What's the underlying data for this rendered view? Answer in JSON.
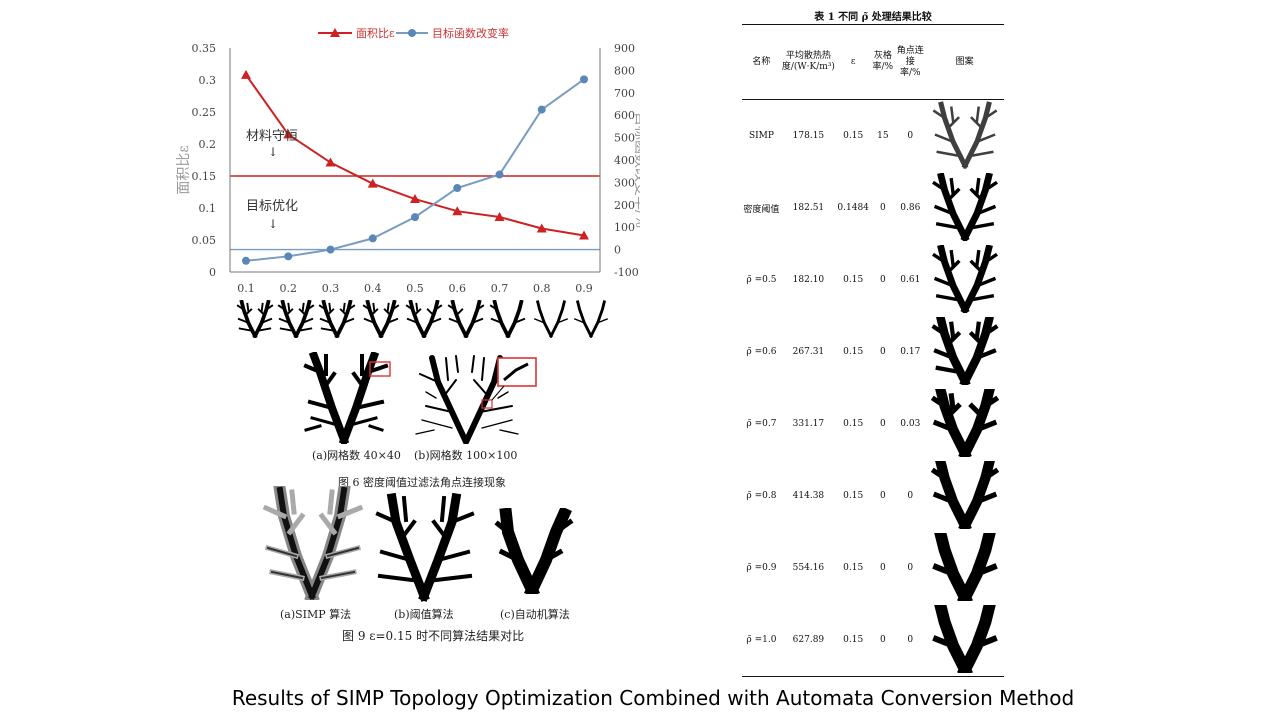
{
  "chart_data": {
    "type": "line",
    "x": [
      0.1,
      0.2,
      0.3,
      0.4,
      0.5,
      0.6,
      0.7,
      0.8,
      0.9
    ],
    "x_ticks": [
      "0.1",
      "0.2",
      "0.3",
      "0.4",
      "0.5",
      "0.6",
      "0.7",
      "0.8",
      "0.9"
    ],
    "y_left_ticks": [
      "0",
      "0.05",
      "0.1",
      "0.15",
      "0.2",
      "0.25",
      "0.3",
      "0.35"
    ],
    "y_right_ticks": [
      "-100",
      "0",
      "100",
      "200",
      "300",
      "400",
      "500",
      "600",
      "700",
      "800",
      "900"
    ],
    "ylim_left": [
      0,
      0.35
    ],
    "ylim_right": [
      -100,
      900
    ],
    "ylabel_left": "面积比ε",
    "ylabel_right": "目标函数改变率/%",
    "series": [
      {
        "name": "面积比ε",
        "axis": "left",
        "color": "#cc2222",
        "marker": "triangle",
        "values": [
          0.308,
          0.215,
          0.171,
          0.138,
          0.114,
          0.095,
          0.086,
          0.068,
          0.057
        ]
      },
      {
        "name": "目标函数改变率",
        "axis": "right",
        "color": "#7a9cc0",
        "marker": "circle",
        "values": [
          -50,
          -30,
          0,
          50,
          145,
          275,
          335,
          625,
          760
        ]
      }
    ],
    "reference_lines": [
      {
        "axis": "left",
        "value": 0.15,
        "color": "#cc2222"
      },
      {
        "axis": "right",
        "value": 0,
        "color": "#7a9cc0"
      }
    ],
    "annotations": [
      "材料守恒",
      "目标优化"
    ]
  },
  "captions": {
    "fig6_a": "(a)网格数 40×40",
    "fig6_b": "(b)网格数 100×100",
    "fig6": "图 6  密度阈值过滤法角点连接现象",
    "fig9_a": "(a)SIMP 算法",
    "fig9_b": "(b)阈值算法",
    "fig9_c": "(c)自动机算法",
    "fig9": "图 9  ε=0.15 时不同算法结果对比"
  },
  "table": {
    "title": "表 1  不同 ρ̃ 处理结果比较",
    "headers": [
      "名称",
      "平均散热热度/(W·K/m³)",
      "ε",
      "灰格率/%",
      "角点连接率/%",
      "图案"
    ],
    "rows": [
      {
        "name": "SIMP",
        "heat": "178.15",
        "eps": "0.15",
        "gray": "15",
        "corner": "0"
      },
      {
        "name": "密度阈值",
        "heat": "182.51",
        "eps": "0.1484",
        "gray": "0",
        "corner": "0.86"
      },
      {
        "name": "ρ̃ =0.5",
        "heat": "182.10",
        "eps": "0.15",
        "gray": "0",
        "corner": "0.61"
      },
      {
        "name": "ρ̃ =0.6",
        "heat": "267.31",
        "eps": "0.15",
        "gray": "0",
        "corner": "0.17"
      },
      {
        "name": "ρ̃ =0.7",
        "heat": "331.17",
        "eps": "0.15",
        "gray": "0",
        "corner": "0.03"
      },
      {
        "name": "ρ̃ =0.8",
        "heat": "414.38",
        "eps": "0.15",
        "gray": "0",
        "corner": "0"
      },
      {
        "name": "ρ̃ =0.9",
        "heat": "554.16",
        "eps": "0.15",
        "gray": "0",
        "corner": "0"
      },
      {
        "name": "ρ̃ =1.0",
        "heat": "627.89",
        "eps": "0.15",
        "gray": "0",
        "corner": "0"
      }
    ]
  },
  "footer": "Results of SIMP Topology Optimization Combined with Automata Conversion Method"
}
